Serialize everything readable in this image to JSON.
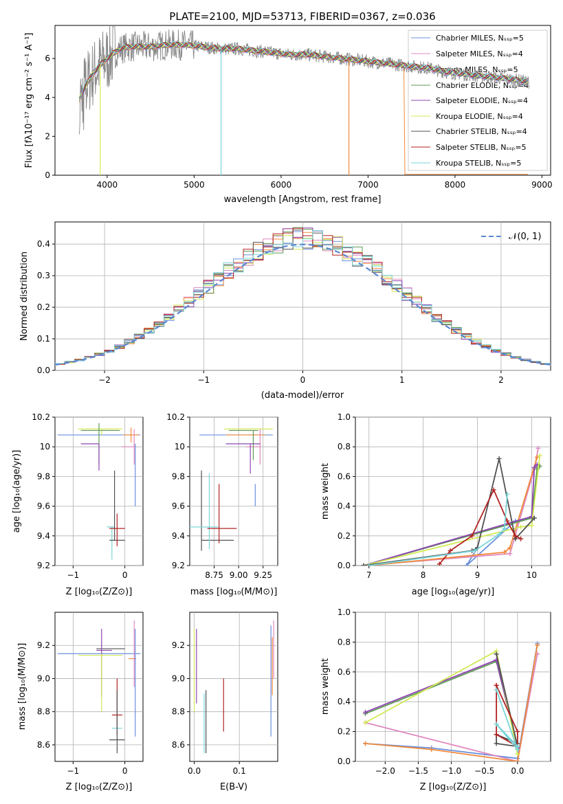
{
  "title": "PLATE=2100, MJD=53713, FIBERID=0367, z=0.036",
  "colors": {
    "chabrier_miles": "#6a8fde",
    "salpeter_miles": "#e088bf",
    "kroupa_miles": "#f0893a",
    "chabrier_elodie": "#5d9a52",
    "salpeter_elodie": "#8e44b0",
    "kroupa_elodie": "#d2ea55",
    "chabrier_stelib": "#505050",
    "salpeter_stelib": "#b22222",
    "kroupa_stelib": "#78d6d8",
    "data": "#888888",
    "normal": "#5b87d2"
  },
  "chart_data": [
    {
      "id": "spectrum",
      "type": "line",
      "xlabel": "wavelength [Angstrom, rest frame]",
      "ylabel": "Flux [fλ10⁻¹⁷ erg cm⁻² s⁻¹ A⁻¹]",
      "xlim": [
        3400,
        9100
      ],
      "ylim": [
        0,
        7.7
      ],
      "xticks": [
        4000,
        5000,
        6000,
        7000,
        8000,
        9000
      ],
      "yticks": [
        0,
        2,
        4,
        6
      ],
      "grid": false,
      "legend": [
        "Chabrier MILES, Nₛₛₚ=5",
        "Salpeter MILES, Nₛₛₚ=4",
        "Kroupa MILES, Nₛₛₚ=5",
        "Chabrier ELODIE, Nₛₛₚ=4",
        "Salpeter ELODIE, Nₛₛₚ=4",
        "Kroupa ELODIE, Nₛₛₚ=4",
        "Chabrier STELIB, Nₛₛₚ=4",
        "Salpeter STELIB, Nₛₛₚ=5",
        "Kroupa STELIB, Nₛₛₚ=5"
      ],
      "legend_placement": "right",
      "model_curve": {
        "x": [
          3680,
          3750,
          3850,
          3950,
          4050,
          4150,
          4250,
          4350,
          4500,
          4700,
          4900,
          5100,
          5300,
          5500,
          5700,
          5900,
          6100,
          6300,
          6500,
          6700,
          6900,
          7100,
          7300,
          7500,
          7700,
          7900,
          8100,
          8300,
          8500,
          8700,
          8850
        ],
        "y": [
          3.9,
          4.6,
          5.3,
          5.8,
          6.2,
          6.5,
          6.6,
          6.6,
          6.6,
          6.7,
          6.7,
          6.6,
          6.5,
          6.5,
          6.4,
          6.3,
          6.2,
          6.2,
          6.1,
          6.0,
          5.9,
          5.8,
          5.7,
          5.6,
          5.5,
          5.3,
          5.2,
          5.1,
          5.0,
          4.9,
          4.8
        ]
      }
    },
    {
      "id": "residuals",
      "type": "area",
      "xlabel": "(data-model)/error",
      "ylabel": "Normed distribution",
      "xlim": [
        -2.5,
        2.5
      ],
      "ylim": [
        0,
        0.47
      ],
      "xticks": [
        -2,
        -1,
        0,
        1,
        2
      ],
      "yticks": [
        0.0,
        0.1,
        0.2,
        0.3,
        0.4
      ],
      "grid": true,
      "legend": [
        "𝒩(0, 1)"
      ],
      "legend_placement": "top-right"
    },
    {
      "id": "age_vs_Z",
      "type": "scatter",
      "xlabel": "Z [log₁₀(Z/Z⊙)]",
      "ylabel": "age  [log₁₀(age/yr)]",
      "xlim": [
        -1.35,
        0.35
      ],
      "ylim": [
        9.2,
        10.2
      ],
      "xticks": [
        -1,
        0
      ],
      "yticks": [
        9.2,
        9.4,
        9.6,
        9.8,
        10.0,
        10.2
      ],
      "grid": true
    },
    {
      "id": "age_vs_mass",
      "type": "scatter",
      "xlabel": "mass [log₁₀(M/M⊙)]",
      "xlim": [
        8.5,
        9.4
      ],
      "ylim": [
        9.2,
        10.2
      ],
      "xticks": [
        8.75,
        9.0,
        9.25
      ],
      "yticks": [
        9.2,
        9.4,
        9.6,
        9.8,
        10.0,
        10.2
      ],
      "grid": true
    },
    {
      "id": "weight_vs_age",
      "type": "line",
      "xlabel": "age  [log₁₀(age/yr)]",
      "ylabel": "mass weight",
      "xlim": [
        6.75,
        10.35
      ],
      "ylim": [
        0,
        1
      ],
      "xticks": [
        7,
        8,
        9,
        10
      ],
      "yticks": [
        0.0,
        0.2,
        0.4,
        0.6,
        0.8,
        1.0
      ],
      "grid": true,
      "series": [
        {
          "color": "chabrier_miles",
          "x": [
            9.0,
            8.8,
            9.7,
            10.0
          ],
          "y": [
            0.12,
            0.0,
            0.3,
            0.32
          ]
        },
        {
          "color": "salpeter_miles",
          "x": [
            6.9,
            9.6,
            10.05,
            10.12
          ],
          "y": [
            0.0,
            0.08,
            0.65,
            0.79
          ]
        },
        {
          "color": "kroupa_miles",
          "x": [
            7.0,
            9.5,
            9.6,
            10.1
          ],
          "y": [
            0.0,
            0.09,
            0.12,
            0.73
          ]
        },
        {
          "color": "chabrier_elodie",
          "x": [
            6.9,
            10.0,
            10.1,
            10.15
          ],
          "y": [
            0.0,
            0.32,
            0.65,
            0.67
          ]
        },
        {
          "color": "salpeter_elodie",
          "x": [
            6.9,
            10.0,
            10.05,
            10.1
          ],
          "y": [
            0.0,
            0.33,
            0.66,
            0.68
          ]
        },
        {
          "color": "kroupa_elodie",
          "x": [
            6.9,
            9.8,
            10.0,
            10.15
          ],
          "y": [
            0.0,
            0.26,
            0.27,
            0.74
          ]
        },
        {
          "color": "chabrier_stelib",
          "x": [
            6.9,
            8.9,
            9.0,
            9.4,
            9.7,
            10.05
          ],
          "y": [
            0.0,
            0.1,
            0.12,
            0.72,
            0.18,
            0.32
          ]
        },
        {
          "color": "salpeter_stelib",
          "x": [
            8.3,
            8.5,
            8.9,
            9.3,
            9.55,
            9.7,
            9.8
          ],
          "y": [
            0.01,
            0.1,
            0.2,
            0.51,
            0.3,
            0.2,
            0.18
          ]
        },
        {
          "color": "kroupa_stelib",
          "x": [
            7.0,
            8.95,
            9.4,
            9.5,
            9.55
          ],
          "y": [
            0.0,
            0.1,
            0.21,
            0.25,
            0.48
          ]
        }
      ]
    },
    {
      "id": "mass_vs_Z",
      "type": "scatter",
      "xlabel": "Z [log₁₀(Z/Z⊙)]",
      "ylabel": "mass [log₁₀(M/M⊙)]",
      "xlim": [
        -1.35,
        0.35
      ],
      "ylim": [
        8.5,
        9.4
      ],
      "xticks": [
        -1,
        0
      ],
      "yticks": [
        8.6,
        8.8,
        9.0,
        9.2
      ],
      "grid": true
    },
    {
      "id": "mass_vs_ebv",
      "type": "scatter",
      "xlabel": "E(B-V)",
      "xlim": [
        -0.01,
        0.185
      ],
      "ylim": [
        8.5,
        9.4
      ],
      "xticks": [
        0.0,
        0.1
      ],
      "yticks": [
        8.6,
        8.8,
        9.0,
        9.2
      ],
      "grid": true
    },
    {
      "id": "weight_vs_Z",
      "type": "line",
      "xlabel": "Z [log₁₀(Z/Z⊙)]",
      "ylabel": "mass weight",
      "xlim": [
        -2.45,
        0.5
      ],
      "ylim": [
        0,
        1
      ],
      "xticks": [
        -2.0,
        -1.5,
        -1.0,
        -0.5,
        0.0
      ],
      "yticks": [
        0.0,
        0.2,
        0.4,
        0.6,
        0.8,
        1.0
      ],
      "grid": true,
      "series": [
        {
          "color": "chabrier_miles",
          "x": [
            -2.3,
            -1.3,
            0.0,
            0.3
          ],
          "y": [
            0.12,
            0.09,
            0.02,
            0.79
          ]
        },
        {
          "color": "salpeter_miles",
          "x": [
            -2.3,
            0.0,
            0.3
          ],
          "y": [
            0.26,
            0.0,
            0.72
          ]
        },
        {
          "color": "kroupa_miles",
          "x": [
            -2.3,
            -1.3,
            0.0,
            0.3
          ],
          "y": [
            0.12,
            0.08,
            0.0,
            0.78
          ]
        },
        {
          "color": "chabrier_elodie",
          "x": [
            -2.3,
            -0.32,
            0.0
          ],
          "y": [
            0.32,
            0.67,
            0.1
          ]
        },
        {
          "color": "salpeter_elodie",
          "x": [
            -2.3,
            -0.32,
            0.0
          ],
          "y": [
            0.33,
            0.68,
            0.09
          ]
        },
        {
          "color": "kroupa_elodie",
          "x": [
            -2.3,
            -0.32,
            0.0
          ],
          "y": [
            0.26,
            0.74,
            0.05
          ]
        },
        {
          "color": "chabrier_stelib",
          "x": [
            -0.32,
            0.0,
            -0.32,
            -0.32,
            0.0
          ],
          "y": [
            0.72,
            0.1,
            0.12,
            0.18,
            0.12
          ]
        },
        {
          "color": "salpeter_stelib",
          "x": [
            -0.32,
            -0.32,
            0.0,
            0.0,
            -0.32
          ],
          "y": [
            0.51,
            0.18,
            0.1,
            0.2,
            0.51
          ]
        },
        {
          "color": "kroupa_stelib",
          "x": [
            -0.32,
            0.0,
            -0.32,
            0.0
          ],
          "y": [
            0.48,
            0.08,
            0.25,
            0.1
          ]
        }
      ]
    }
  ]
}
